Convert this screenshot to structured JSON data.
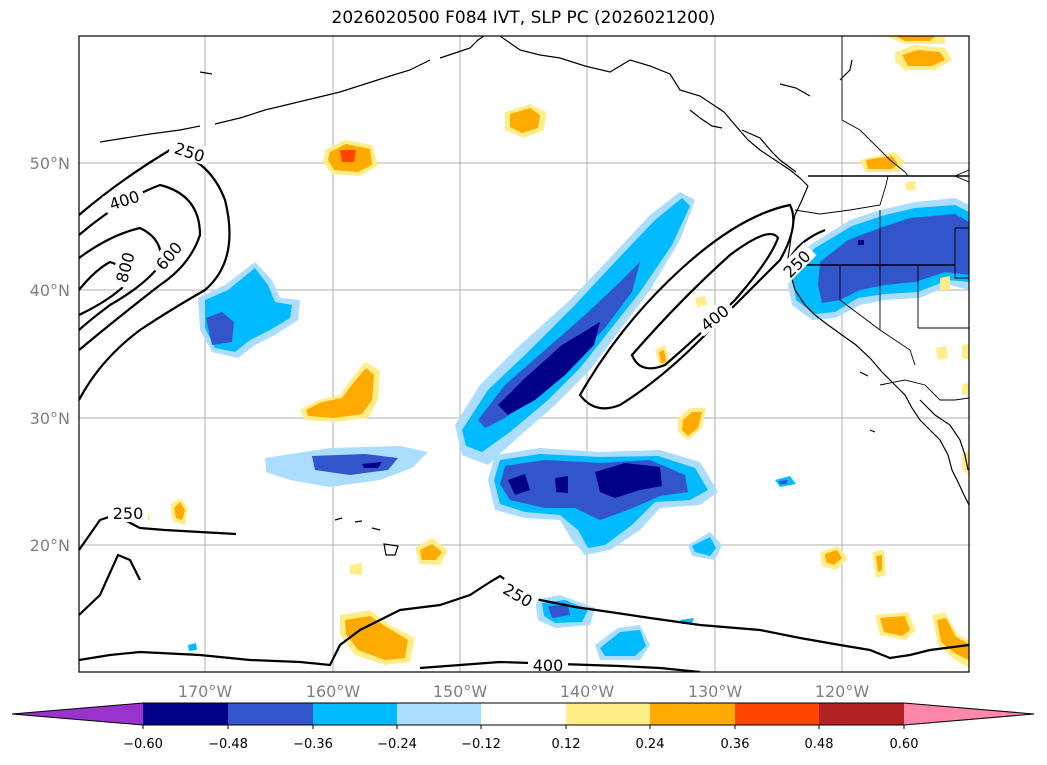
{
  "title": "2026020500 F084 IVT, SLP PC (2026021200)",
  "axes": {
    "lat_labels": [
      "50°N",
      "40°N",
      "30°N",
      "20°N"
    ],
    "lon_labels": [
      "170°W",
      "160°W",
      "150°W",
      "140°W",
      "130°W",
      "120°W"
    ]
  },
  "colorbar": {
    "ticks": [
      "−0.60",
      "−0.48",
      "−0.36",
      "−0.24",
      "−0.12",
      "0.12",
      "0.24",
      "0.36",
      "0.48",
      "0.60"
    ],
    "colors": [
      "#9933cc",
      "#000088",
      "#3355cc",
      "#00bbff",
      "#aaddff",
      "#ffffff",
      "#ffee88",
      "#ffaa00",
      "#ff4400",
      "#b22222",
      "#ff88aa"
    ]
  },
  "contour_labels": [
    "250",
    "400",
    "600",
    "800",
    "250",
    "400",
    "250",
    "250",
    "400"
  ],
  "colors": {
    "dark_blue": "#000088",
    "mid_blue": "#3355cc",
    "cyan": "#00bbff",
    "light_blue": "#aaddff",
    "yellow": "#ffee88",
    "orange": "#ffaa00",
    "red_orange": "#ff4400"
  }
}
